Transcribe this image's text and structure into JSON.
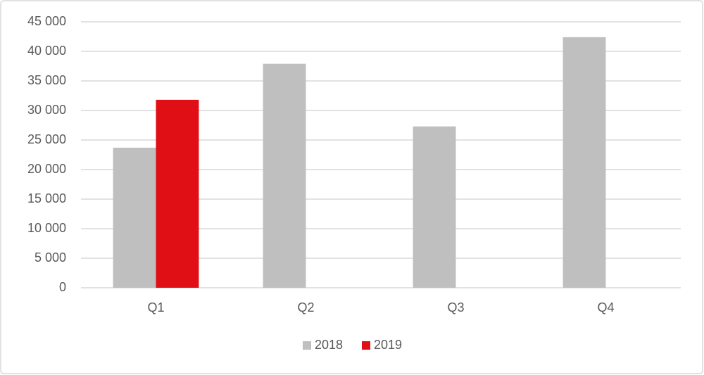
{
  "chart_data": {
    "type": "bar",
    "categories": [
      "Q1",
      "Q2",
      "Q3",
      "Q4"
    ],
    "series": [
      {
        "name": "2018",
        "color": "#bfbfbf",
        "values": [
          23700,
          37900,
          27300,
          42400
        ]
      },
      {
        "name": "2019",
        "color": "#e00f16",
        "values": [
          31800,
          null,
          null,
          null
        ]
      }
    ],
    "ylim": [
      0,
      45000
    ],
    "yticks": [
      0,
      {
        "value": 5000,
        "label": "5 000"
      },
      {
        "value": 10000,
        "label": "10 000"
      },
      {
        "value": 15000,
        "label": "15 000"
      },
      {
        "value": 20000,
        "label": "20 000"
      },
      {
        "value": 25000,
        "label": "25 000"
      },
      {
        "value": 30000,
        "label": "30 000"
      },
      {
        "value": 35000,
        "label": "35 000"
      },
      {
        "value": 40000,
        "label": "40 000"
      },
      {
        "value": 45000,
        "label": "45 000"
      }
    ],
    "grid": true,
    "legend": "bottom"
  }
}
